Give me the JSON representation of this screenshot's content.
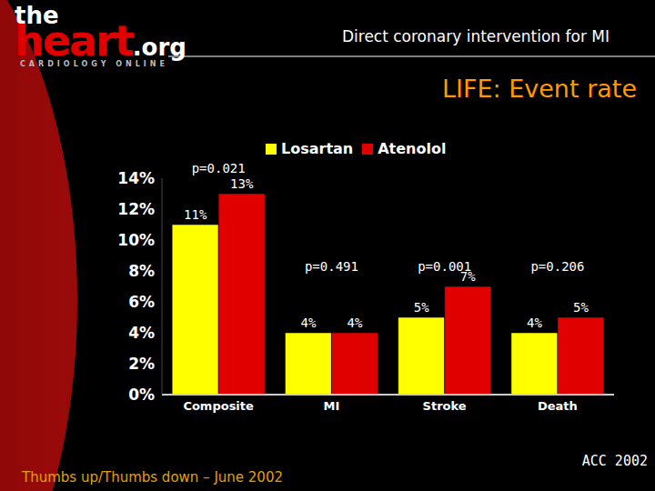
{
  "page": {
    "logo": {
      "parts": [
        "the",
        "heart",
        ".org"
      ],
      "tagline": "CARDIOLOGY ONLINE"
    },
    "header": "Direct coronary intervention for MI",
    "footer": "Thumbs up/Thumbs down – June 2002",
    "source": "ACC 2002"
  },
  "chart_data": {
    "type": "bar",
    "title": "LIFE: Event rate",
    "categories": [
      "Composite",
      "MI",
      "Stroke",
      "Death"
    ],
    "series": [
      {
        "name": "Losartan",
        "color": "#ffff00",
        "values": [
          11,
          4,
          5,
          4
        ],
        "value_labels": [
          "11%",
          "4%",
          "5%",
          "4%"
        ]
      },
      {
        "name": "Atenolol",
        "color": "#e00000",
        "values": [
          13,
          4,
          7,
          5
        ],
        "value_labels": [
          "13%",
          "4%",
          "7%",
          "5%"
        ]
      }
    ],
    "annotations": [
      "p=0.021",
      "p=0.491",
      "p=0.001",
      "p=0.206"
    ],
    "ylim": [
      0,
      14
    ],
    "yticks": [
      {
        "value": 0,
        "label": "0%"
      },
      {
        "value": 2,
        "label": "2%"
      },
      {
        "value": 4,
        "label": "4%"
      },
      {
        "value": 6,
        "label": "6%"
      },
      {
        "value": 8,
        "label": "8%"
      },
      {
        "value": 10,
        "label": "10%"
      },
      {
        "value": 12,
        "label": "12%"
      },
      {
        "value": 14,
        "label": "14%"
      }
    ],
    "grid": false,
    "legend": "top",
    "data_labels": true
  }
}
